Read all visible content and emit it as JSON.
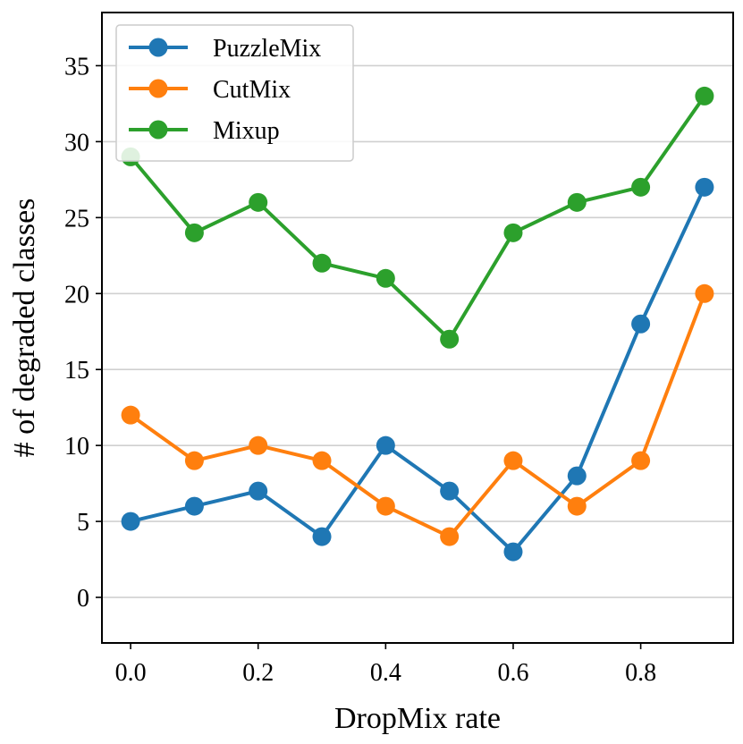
{
  "chart_data": {
    "type": "line",
    "xlabel": "DropMix rate",
    "ylabel": "# of degraded classes",
    "x": [
      0.0,
      0.1,
      0.2,
      0.3,
      0.4,
      0.5,
      0.6,
      0.7,
      0.8,
      0.9
    ],
    "xlim": [
      -0.045,
      0.945
    ],
    "ylim": [
      -3,
      38.5
    ],
    "xticks": [
      0.0,
      0.2,
      0.4,
      0.6,
      0.8
    ],
    "xtick_labels": [
      "0.0",
      "0.2",
      "0.4",
      "0.6",
      "0.8"
    ],
    "yticks": [
      0,
      5,
      10,
      15,
      20,
      25,
      30,
      35
    ],
    "ytick_labels": [
      "0",
      "5",
      "10",
      "15",
      "20",
      "25",
      "30",
      "35"
    ],
    "grid": "horizontal",
    "legend_position": "top-left",
    "series": [
      {
        "name": "PuzzleMix",
        "color": "#1f77b4",
        "values": [
          5,
          6,
          7,
          4,
          10,
          7,
          3,
          8,
          18,
          27
        ]
      },
      {
        "name": "CutMix",
        "color": "#ff7f0e",
        "values": [
          12,
          9,
          10,
          9,
          6,
          4,
          9,
          6,
          9,
          20
        ]
      },
      {
        "name": "Mixup",
        "color": "#2ca02c",
        "values": [
          29,
          24,
          26,
          22,
          21,
          17,
          24,
          26,
          27,
          33
        ]
      }
    ]
  }
}
